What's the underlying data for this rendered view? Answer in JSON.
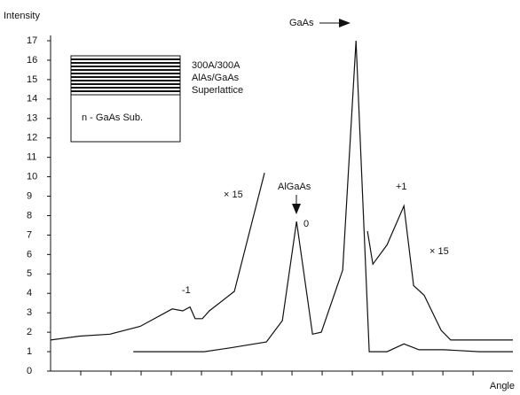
{
  "chart_data": {
    "type": "line",
    "y_label": "Intensity",
    "x_label": "Angle",
    "xlim": [
      0,
      15.32
    ],
    "xticks": [
      1,
      2,
      3,
      4,
      5,
      6,
      7,
      8,
      9,
      10,
      11,
      12,
      13,
      14
    ],
    "ylim": [
      0,
      17
    ],
    "yticks": [
      0,
      1,
      2,
      3,
      4,
      5,
      6,
      7,
      8,
      9,
      10,
      11,
      12,
      13,
      14,
      15,
      16,
      17
    ],
    "series": [
      {
        "color": "#111111",
        "x": [
          0,
          0.97,
          1.97,
          2.97,
          4.03,
          4.38,
          4.62,
          4.79,
          5.03,
          5.26,
          6.09,
          7.09,
          8.5,
          10.5,
          10.68,
          11.15,
          11.71,
          12.03,
          12.38,
          12.94,
          13.26,
          15.32
        ],
        "values": [
          1.6,
          1.8,
          1.9,
          2.3,
          3.2,
          3.1,
          3.3,
          2.7,
          2.7,
          3.1,
          4.1,
          10.2,
          null,
          7.2,
          5.5,
          6.5,
          8.5,
          4.4,
          3.9,
          2.1,
          1.6,
          1.6
        ]
      },
      {
        "color": "#111111",
        "x": [
          2.74,
          5.09,
          5.97,
          7.15,
          7.68,
          8.15,
          8.68,
          8.97,
          9.68,
          10.12,
          10.56,
          11.15,
          11.71,
          12.21,
          13.03,
          14.21,
          15.32
        ],
        "values": [
          1.0,
          1.0,
          1.2,
          1.5,
          2.6,
          7.7,
          1.9,
          2.0,
          5.2,
          17,
          1.0,
          1.0,
          1.4,
          1.1,
          1.1,
          1.0,
          1.0
        ]
      }
    ],
    "annotations": [
      "GaAs",
      "AlGaAs",
      "0",
      "+1",
      "-1",
      "× 15",
      "× 15"
    ],
    "inset": {
      "layers": [
        "300A/300A",
        "AlAs/GaAs",
        "Superlattice"
      ],
      "substrate": "n - GaAs Sub."
    }
  }
}
